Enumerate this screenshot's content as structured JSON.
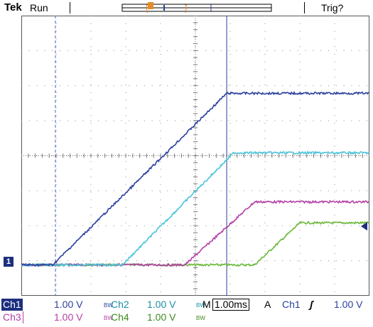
{
  "header": {
    "brand": "Tek",
    "status": "Run",
    "trigger_status": "Trig?"
  },
  "trigger_marker_label": "T",
  "ch1_marker_label": "1",
  "readout": {
    "row1": {
      "ch1": {
        "label": "Ch1",
        "scale": "1.00 V",
        "bw": "BW"
      },
      "ch2": {
        "label": "Ch2",
        "scale": "1.00 V",
        "bw": "BW"
      },
      "timebase": {
        "prefix": "M",
        "value": "1.00ms"
      },
      "trigger": {
        "mode": "A",
        "source": "Ch1",
        "slope": "ʃ",
        "level": "1.00 V"
      }
    },
    "row2": {
      "ch3": {
        "label": "Ch3",
        "scale": "1.00 V",
        "bw": "BW"
      },
      "ch4": {
        "label": "Ch4",
        "scale": "1.00 V",
        "bw": "BW"
      }
    }
  },
  "colors": {
    "ch1": "#2a3f9e",
    "ch2": "#4cc3d9",
    "ch3": "#b43fa6",
    "ch4": "#6bb83a",
    "ch1_dark": "#1d2f7f"
  },
  "waveforms": [
    {
      "channel": "Ch1",
      "points_div": [
        [
          0,
          -0.05
        ],
        [
          0.9,
          -0.05
        ],
        [
          5.9,
          4.85
        ],
        [
          10,
          4.85
        ]
      ]
    },
    {
      "channel": "Ch2",
      "points_div": [
        [
          0,
          -0.05
        ],
        [
          2.9,
          -0.05
        ],
        [
          6.1,
          3.15
        ],
        [
          10,
          3.15
        ]
      ]
    },
    {
      "channel": "Ch3",
      "points_div": [
        [
          0,
          -0.05
        ],
        [
          4.7,
          -0.05
        ],
        [
          6.7,
          1.75
        ],
        [
          10,
          1.75
        ]
      ]
    },
    {
      "channel": "Ch4",
      "points_div": [
        [
          0,
          -0.05
        ],
        [
          6.7,
          -0.05
        ],
        [
          8.0,
          1.15
        ],
        [
          10,
          1.15
        ]
      ]
    }
  ]
}
